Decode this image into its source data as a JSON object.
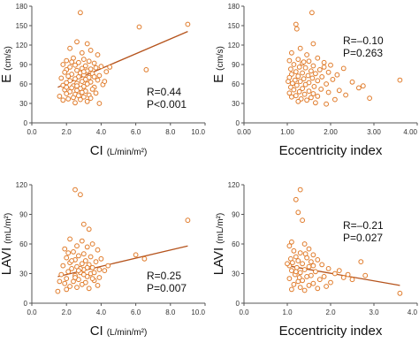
{
  "colors": {
    "point_stroke": "#e07b2a",
    "point_fill": "#ffffff",
    "regression": "#b5531c",
    "axis": "#555555"
  },
  "chart_data": [
    {
      "type": "scatter",
      "xlabel": "CI",
      "xlabel_unit": "(L/min/m²)",
      "ylabel": "E",
      "ylabel_unit": "(cm/s)",
      "xlim": [
        0,
        10
      ],
      "ylim": [
        0,
        180
      ],
      "xticks": [
        "0.0",
        "2.0",
        "4.0",
        "6.0",
        "8.0",
        "10.0"
      ],
      "yticks": [
        "0",
        "30",
        "60",
        "90",
        "120",
        "150",
        "180"
      ],
      "stats": [
        "R=0.44",
        "P<0.001"
      ],
      "regression": [
        [
          1.5,
          55
        ],
        [
          9.0,
          141
        ]
      ],
      "points": [
        [
          2.8,
          170
        ],
        [
          6.2,
          148
        ],
        [
          9.0,
          152
        ],
        [
          6.6,
          82
        ],
        [
          2.6,
          125
        ],
        [
          3.2,
          122
        ],
        [
          2.2,
          115
        ],
        [
          3.4,
          112
        ],
        [
          2.9,
          108
        ],
        [
          3.8,
          105
        ],
        [
          2.4,
          100
        ],
        [
          3.0,
          98
        ],
        [
          2.0,
          96
        ],
        [
          3.3,
          95
        ],
        [
          2.7,
          93
        ],
        [
          3.6,
          92
        ],
        [
          1.8,
          90
        ],
        [
          2.5,
          89
        ],
        [
          3.1,
          88
        ],
        [
          4.0,
          87
        ],
        [
          2.2,
          86
        ],
        [
          3.7,
          85
        ],
        [
          2.9,
          84
        ],
        [
          3.4,
          83
        ],
        [
          2.0,
          82
        ],
        [
          2.6,
          81
        ],
        [
          3.2,
          80
        ],
        [
          4.3,
          79
        ],
        [
          1.9,
          78
        ],
        [
          2.8,
          77
        ],
        [
          3.5,
          76
        ],
        [
          2.3,
          75
        ],
        [
          3.0,
          74
        ],
        [
          3.9,
          73
        ],
        [
          2.1,
          72
        ],
        [
          2.7,
          71
        ],
        [
          3.3,
          70
        ],
        [
          1.7,
          69
        ],
        [
          2.5,
          68
        ],
        [
          3.1,
          67
        ],
        [
          3.8,
          66
        ],
        [
          2.2,
          65
        ],
        [
          2.9,
          64
        ],
        [
          3.4,
          63
        ],
        [
          2.0,
          62
        ],
        [
          2.6,
          61
        ],
        [
          3.2,
          60
        ],
        [
          4.1,
          59
        ],
        [
          1.8,
          58
        ],
        [
          2.4,
          57
        ],
        [
          3.0,
          56
        ],
        [
          3.6,
          55
        ],
        [
          2.3,
          54
        ],
        [
          2.8,
          53
        ],
        [
          3.5,
          52
        ],
        [
          1.9,
          51
        ],
        [
          2.6,
          50
        ],
        [
          3.1,
          49
        ],
        [
          2.2,
          48
        ],
        [
          2.9,
          47
        ],
        [
          3.7,
          46
        ],
        [
          2.0,
          45
        ],
        [
          2.5,
          44
        ],
        [
          3.3,
          43
        ],
        [
          2.7,
          42
        ],
        [
          1.6,
          41
        ],
        [
          3.0,
          40
        ],
        [
          2.4,
          39
        ],
        [
          3.4,
          38
        ],
        [
          2.1,
          37
        ],
        [
          2.8,
          36
        ],
        [
          1.8,
          35
        ],
        [
          3.2,
          33
        ],
        [
          2.5,
          31
        ],
        [
          3.9,
          30
        ],
        [
          4.5,
          86
        ],
        [
          4.2,
          64
        ],
        [
          2.3,
          94
        ],
        [
          3.6,
          71
        ],
        [
          2.6,
          57
        ],
        [
          3.0,
          79
        ],
        [
          2.0,
          55
        ]
      ]
    },
    {
      "type": "scatter",
      "xlabel": "Eccentricity index",
      "xlabel_unit": "",
      "ylabel": "E",
      "ylabel_unit": "(cm/s)",
      "xlim": [
        0,
        4
      ],
      "ylim": [
        0,
        180
      ],
      "xticks": [
        "0.00",
        "1.00",
        "2.00",
        "3.00",
        "4.00"
      ],
      "yticks": [
        "0",
        "30",
        "60",
        "90",
        "120",
        "150",
        "180"
      ],
      "stats": [
        "R=–0.10",
        "P=0.263"
      ],
      "regression": null,
      "points": [
        [
          1.57,
          170
        ],
        [
          1.2,
          152
        ],
        [
          1.22,
          145
        ],
        [
          1.6,
          122
        ],
        [
          1.3,
          115
        ],
        [
          1.1,
          108
        ],
        [
          1.45,
          105
        ],
        [
          1.7,
          100
        ],
        [
          1.25,
          98
        ],
        [
          1.05,
          96
        ],
        [
          1.5,
          95
        ],
        [
          1.85,
          93
        ],
        [
          1.35,
          92
        ],
        [
          1.15,
          90
        ],
        [
          2.0,
          89
        ],
        [
          1.6,
          88
        ],
        [
          1.28,
          86
        ],
        [
          1.42,
          85
        ],
        [
          2.3,
          84
        ],
        [
          1.08,
          83
        ],
        [
          1.75,
          82
        ],
        [
          1.55,
          80
        ],
        [
          1.2,
          79
        ],
        [
          1.95,
          78
        ],
        [
          1.35,
          77
        ],
        [
          1.65,
          76
        ],
        [
          1.1,
          75
        ],
        [
          2.15,
          74
        ],
        [
          1.48,
          73
        ],
        [
          1.25,
          72
        ],
        [
          1.8,
          71
        ],
        [
          1.05,
          70
        ],
        [
          1.58,
          69
        ],
        [
          1.38,
          68
        ],
        [
          2.05,
          67
        ],
        [
          1.18,
          66
        ],
        [
          1.7,
          65
        ],
        [
          1.3,
          64
        ],
        [
          2.5,
          63
        ],
        [
          1.5,
          62
        ],
        [
          1.12,
          61
        ],
        [
          1.9,
          60
        ],
        [
          1.42,
          59
        ],
        [
          1.22,
          58
        ],
        [
          2.75,
          57
        ],
        [
          1.62,
          56
        ],
        [
          1.08,
          55
        ],
        [
          2.65,
          54
        ],
        [
          1.35,
          53
        ],
        [
          1.78,
          52
        ],
        [
          1.15,
          51
        ],
        [
          2.2,
          50
        ],
        [
          1.5,
          49
        ],
        [
          1.28,
          48
        ],
        [
          1.95,
          47
        ],
        [
          1.05,
          46
        ],
        [
          1.6,
          45
        ],
        [
          1.4,
          44
        ],
        [
          2.35,
          43
        ],
        [
          1.2,
          42
        ],
        [
          1.7,
          41
        ],
        [
          1.1,
          40
        ],
        [
          1.55,
          39
        ],
        [
          2.9,
          38
        ],
        [
          1.32,
          37
        ],
        [
          2.1,
          36
        ],
        [
          1.45,
          35
        ],
        [
          1.25,
          33
        ],
        [
          1.65,
          31
        ],
        [
          1.9,
          29
        ],
        [
          3.6,
          66
        ],
        [
          1.02,
          64
        ],
        [
          1.85,
          86
        ],
        [
          1.38,
          94
        ]
      ]
    },
    {
      "type": "scatter",
      "xlabel": "CI",
      "xlabel_unit": "(L/min/m²)",
      "ylabel": "LAVI",
      "ylabel_unit": "(mL/m²)",
      "xlim": [
        0,
        10
      ],
      "ylim": [
        0,
        120
      ],
      "xticks": [
        "0.0",
        "2.0",
        "4.0",
        "6.0",
        "8.0",
        "10.0"
      ],
      "yticks": [
        "0",
        "30",
        "60",
        "90",
        "120"
      ],
      "stats": [
        "R=0.25",
        "P=0.007"
      ],
      "regression": [
        [
          1.5,
          27
        ],
        [
          9.0,
          58
        ]
      ],
      "points": [
        [
          2.5,
          115
        ],
        [
          2.8,
          110
        ],
        [
          3.0,
          80
        ],
        [
          3.3,
          75
        ],
        [
          9.0,
          84
        ],
        [
          2.2,
          65
        ],
        [
          2.9,
          63
        ],
        [
          3.5,
          60
        ],
        [
          6.0,
          49
        ],
        [
          6.5,
          45
        ],
        [
          2.6,
          58
        ],
        [
          3.2,
          57
        ],
        [
          1.9,
          55
        ],
        [
          3.8,
          54
        ],
        [
          2.4,
          52
        ],
        [
          3.0,
          50
        ],
        [
          2.7,
          48
        ],
        [
          3.4,
          47
        ],
        [
          2.0,
          46
        ],
        [
          4.0,
          45
        ],
        [
          2.5,
          44
        ],
        [
          3.1,
          43
        ],
        [
          3.7,
          42
        ],
        [
          2.2,
          41
        ],
        [
          2.9,
          40
        ],
        [
          3.3,
          39
        ],
        [
          1.8,
          38
        ],
        [
          2.6,
          37
        ],
        [
          3.5,
          36
        ],
        [
          2.3,
          35
        ],
        [
          3.0,
          34
        ],
        [
          4.2,
          33
        ],
        [
          2.1,
          32
        ],
        [
          2.8,
          31
        ],
        [
          3.4,
          30
        ],
        [
          1.7,
          29
        ],
        [
          2.5,
          28
        ],
        [
          3.2,
          27
        ],
        [
          3.9,
          26
        ],
        [
          2.0,
          25
        ],
        [
          2.7,
          24
        ],
        [
          3.6,
          23
        ],
        [
          2.4,
          22
        ],
        [
          3.1,
          21
        ],
        [
          1.9,
          20
        ],
        [
          2.9,
          19
        ],
        [
          3.8,
          18
        ],
        [
          2.2,
          17
        ],
        [
          2.6,
          16
        ],
        [
          3.3,
          15
        ],
        [
          2.0,
          14
        ],
        [
          1.5,
          12
        ],
        [
          2.8,
          35
        ],
        [
          3.0,
          29
        ],
        [
          2.3,
          43
        ],
        [
          3.6,
          31
        ],
        [
          2.5,
          26
        ],
        [
          4.4,
          38
        ],
        [
          3.9,
          34
        ],
        [
          2.1,
          51
        ],
        [
          3.2,
          36
        ],
        [
          2.7,
          33
        ],
        [
          1.6,
          22
        ],
        [
          3.5,
          25
        ]
      ]
    },
    {
      "type": "scatter",
      "xlabel": "Eccentricity index",
      "xlabel_unit": "",
      "ylabel": "LAVI",
      "ylabel_unit": "(mL/m²)",
      "xlim": [
        0,
        4
      ],
      "ylim": [
        0,
        120
      ],
      "xticks": [
        "0.0",
        "1.0",
        "2.0",
        "3.0",
        "4.0"
      ],
      "yticks": [
        "0",
        "30",
        "60",
        "90",
        "120"
      ],
      "stats": [
        "R=–0.21",
        "P=0.027"
      ],
      "regression": [
        [
          1.0,
          38
        ],
        [
          3.6,
          18
        ]
      ],
      "points": [
        [
          1.3,
          115
        ],
        [
          1.2,
          105
        ],
        [
          1.25,
          92
        ],
        [
          1.35,
          84
        ],
        [
          1.1,
          62
        ],
        [
          1.4,
          60
        ],
        [
          1.05,
          58
        ],
        [
          1.5,
          55
        ],
        [
          1.15,
          53
        ],
        [
          1.3,
          51
        ],
        [
          1.6,
          49
        ],
        [
          1.2,
          47
        ],
        [
          1.45,
          46
        ],
        [
          1.08,
          45
        ],
        [
          1.7,
          44
        ],
        [
          1.25,
          43
        ],
        [
          1.55,
          42
        ],
        [
          1.12,
          41
        ],
        [
          2.7,
          42
        ],
        [
          1.35,
          40
        ],
        [
          1.8,
          39
        ],
        [
          1.05,
          38
        ],
        [
          1.5,
          37
        ],
        [
          1.22,
          36
        ],
        [
          1.95,
          35
        ],
        [
          1.4,
          34
        ],
        [
          1.1,
          33
        ],
        [
          1.65,
          32
        ],
        [
          1.3,
          31
        ],
        [
          2.1,
          30
        ],
        [
          1.18,
          29
        ],
        [
          1.55,
          28
        ],
        [
          1.45,
          27
        ],
        [
          2.3,
          26
        ],
        [
          1.05,
          25
        ],
        [
          1.75,
          24
        ],
        [
          1.35,
          23
        ],
        [
          1.25,
          22
        ],
        [
          2.0,
          21
        ],
        [
          1.6,
          20
        ],
        [
          1.15,
          19
        ],
        [
          2.5,
          24
        ],
        [
          1.5,
          18
        ],
        [
          1.9,
          17
        ],
        [
          1.3,
          16
        ],
        [
          1.7,
          15
        ],
        [
          1.1,
          14
        ],
        [
          1.4,
          13
        ],
        [
          3.6,
          10
        ],
        [
          2.2,
          33
        ],
        [
          2.8,
          28
        ],
        [
          1.2,
          32
        ],
        [
          1.6,
          38
        ],
        [
          1.85,
          27
        ],
        [
          1.0,
          40
        ],
        [
          1.42,
          50
        ],
        [
          2.4,
          29
        ],
        [
          1.28,
          26
        ]
      ]
    }
  ]
}
